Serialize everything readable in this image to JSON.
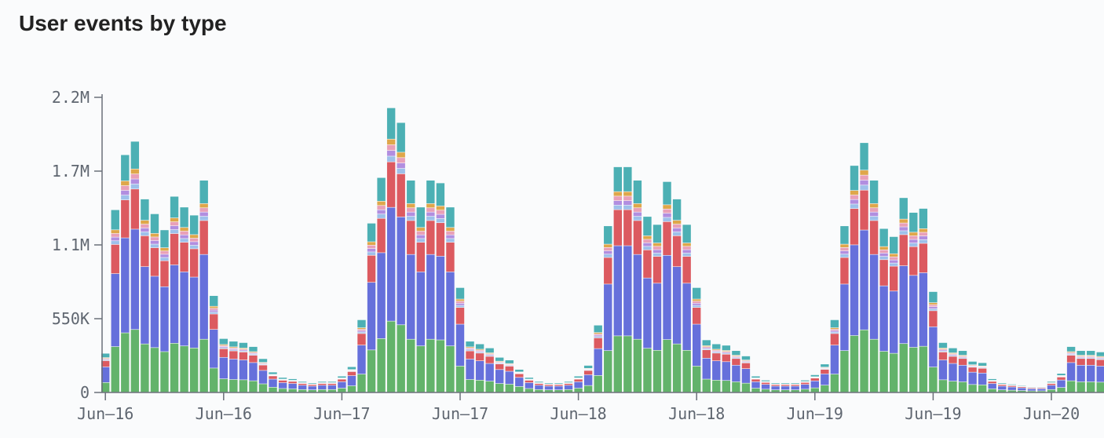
{
  "title": "User events by type",
  "chart_data": {
    "type": "bar",
    "stacked": true,
    "title": "User events by type",
    "xlabel": "",
    "ylabel": "",
    "ylim": [
      0,
      2200000
    ],
    "y_ticks": [
      {
        "value": 0,
        "label": "0"
      },
      {
        "value": 550000,
        "label": "550K"
      },
      {
        "value": 1100000,
        "label": "1.1M"
      },
      {
        "value": 1650000,
        "label": "1.7M"
      },
      {
        "value": 2200000,
        "label": "2.2M"
      }
    ],
    "x_ticks": [
      {
        "index": 0,
        "label": "Jun–16"
      },
      {
        "index": 12,
        "label": "Jun–16"
      },
      {
        "index": 24,
        "label": "Jun–17"
      },
      {
        "index": 36,
        "label": "Jun–17"
      },
      {
        "index": 48,
        "label": "Jun–18"
      },
      {
        "index": 60,
        "label": "Jun–18"
      },
      {
        "index": 72,
        "label": "Jun–19"
      },
      {
        "index": 84,
        "label": "Jun–19"
      },
      {
        "index": 96,
        "label": "Jun–20"
      }
    ],
    "grid": false,
    "legend": "none",
    "series_colors": [
      "#63b36b",
      "#6670db",
      "#dc5a60",
      "#9ec0ea",
      "#b18ee0",
      "#e9a0b8",
      "#dfa74a",
      "#4cb0b4"
    ],
    "bar_count": 102,
    "totals": [
      290000,
      1360000,
      1770000,
      1870000,
      1440000,
      1330000,
      1210000,
      1460000,
      1380000,
      1320000,
      1580000,
      720000,
      400000,
      380000,
      370000,
      340000,
      250000,
      150000,
      110000,
      100000,
      80000,
      70000,
      80000,
      80000,
      120000,
      190000,
      540000,
      1260000,
      1600000,
      2120000,
      2010000,
      1580000,
      1380000,
      1580000,
      1560000,
      1380000,
      780000,
      380000,
      360000,
      330000,
      260000,
      240000,
      170000,
      110000,
      80000,
      70000,
      70000,
      80000,
      120000,
      200000,
      500000,
      1240000,
      1680000,
      1680000,
      1580000,
      1310000,
      1250000,
      1570000,
      1440000,
      1250000,
      780000,
      390000,
      360000,
      350000,
      310000,
      270000,
      120000,
      90000,
      70000,
      70000,
      70000,
      90000,
      130000,
      210000,
      540000,
      1240000,
      1690000,
      1860000,
      1580000,
      1220000,
      1160000,
      1450000,
      1340000,
      1370000,
      750000,
      370000,
      330000,
      310000,
      230000,
      220000,
      100000,
      70000,
      60000,
      50000,
      40000,
      40000,
      80000,
      140000,
      340000,
      310000,
      310000,
      300000
    ]
  }
}
